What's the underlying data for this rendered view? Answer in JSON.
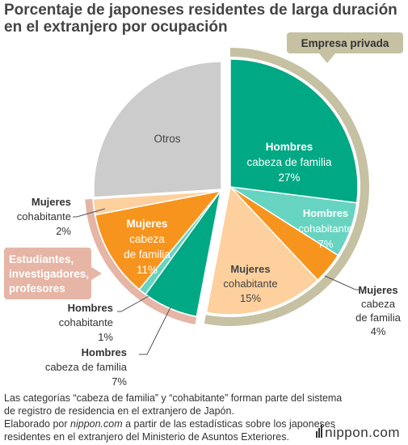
{
  "title": {
    "line1": "Porcentaje de japoneses residentes de larga duración",
    "line2": "en el extranjero por ocupación"
  },
  "chart_data": {
    "type": "pie",
    "slices": [
      {
        "label": [
          "Hombres",
          "cabeza de familia",
          "27%"
        ],
        "value": 27,
        "color": "#00a884",
        "text_color": "#ffffff",
        "bold_first": true
      },
      {
        "label": [
          "Hombres",
          "cohabitante",
          "7%"
        ],
        "value": 7,
        "color": "#66d4c0",
        "text_color": "#ffffff",
        "bold_first": true
      },
      {
        "label": [
          "Mujeres",
          "cabeza",
          "de familia",
          "4%"
        ],
        "value": 4,
        "color": "#f7941d",
        "text_color": "#333333",
        "bold_first": true
      },
      {
        "label": [
          "Mujeres",
          "cohabitante",
          "15%"
        ],
        "value": 15,
        "color": "#fdd09e",
        "text_color": "#444444",
        "bold_first": true
      },
      {
        "label": [
          "Hombres",
          "cabeza de familia",
          "7%"
        ],
        "value": 7,
        "color": "#00a884",
        "text_color": "#333333",
        "bold_first": true
      },
      {
        "label": [
          "Hombres",
          "cohabitante",
          "1%"
        ],
        "value": 1,
        "color": "#66d4c0",
        "text_color": "#333333",
        "bold_first": true
      },
      {
        "label": [
          "Mujeres",
          "cabeza",
          "de familia",
          "11%"
        ],
        "value": 11,
        "color": "#f7941d",
        "text_color": "#ffffff",
        "bold_first": true
      },
      {
        "label": [
          "Mujeres",
          "cohabitante",
          "2%"
        ],
        "value": 2,
        "color": "#fdd09e",
        "text_color": "#333333",
        "bold_first": true
      },
      {
        "label": [
          "Otros"
        ],
        "value": 26,
        "color": "#cccccc",
        "text_color": "#444444",
        "bold_first": false
      }
    ],
    "groups": [
      {
        "label": [
          "Empresa privada"
        ],
        "color": "#c5c1a2",
        "slices": [
          0,
          1,
          2,
          3
        ]
      },
      {
        "label": [
          "Estudiantes,",
          "investigadores,",
          "profesores"
        ],
        "color": "#e6b5a6",
        "slices": [
          4,
          5,
          6,
          7
        ]
      }
    ]
  },
  "footnote": {
    "line1": "Las categorías “cabeza de familia” y “cohabitante” forman parte del sistema",
    "line2": "de registro de residencia en el extranjero de Japón.",
    "line3_prefix": "Elaborado por ",
    "line3_source": "nippon.com",
    "line3_suffix": " a partir de las estadísticas sobre los japoneses",
    "line4": "residentes en el extranjero del Ministerio de Asuntos Exteriores."
  },
  "logo": {
    "text": "nippon.com"
  }
}
